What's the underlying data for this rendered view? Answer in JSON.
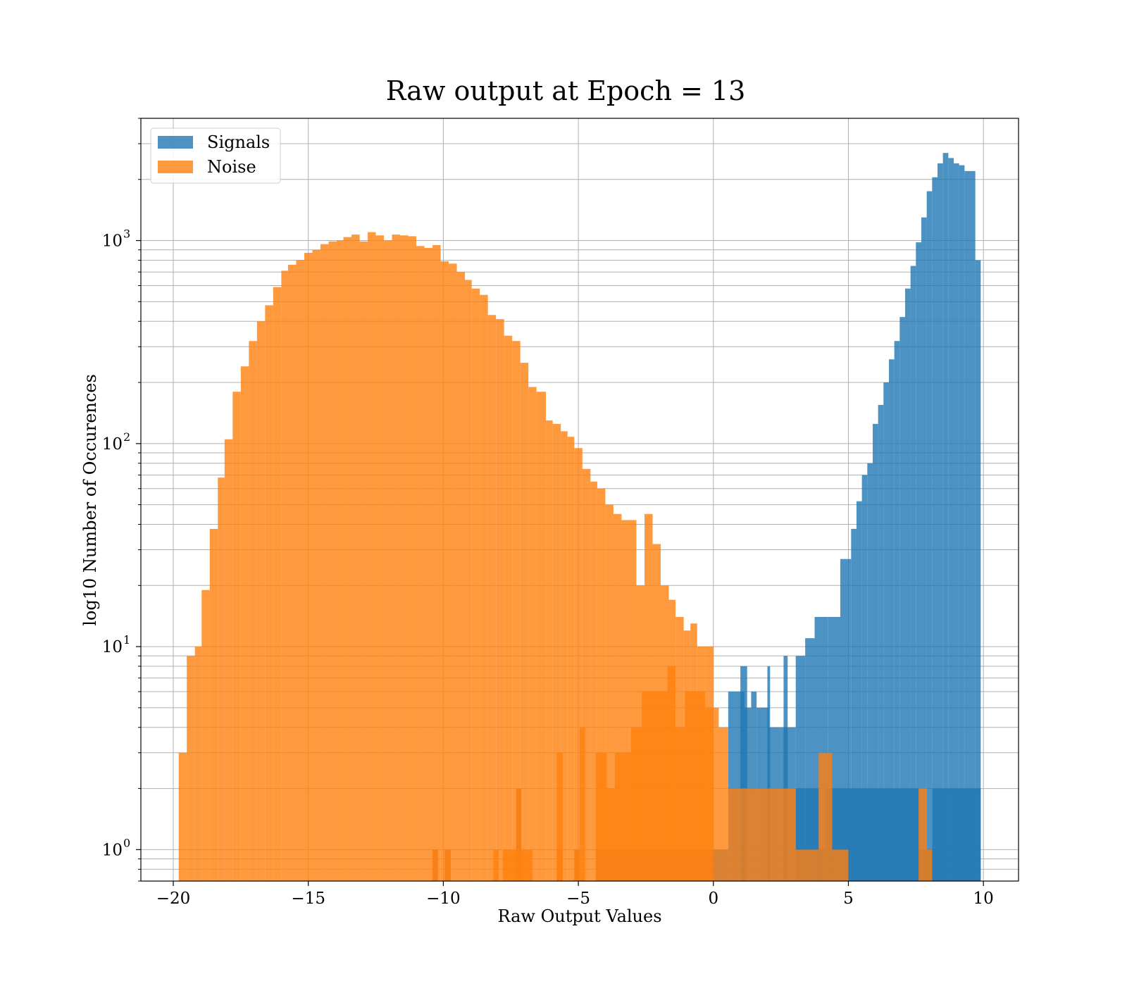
{
  "chart_data": {
    "type": "histogram",
    "title": "Raw output at Epoch = 13",
    "xlabel": "Raw Output Values",
    "ylabel": "log10 Number of Occurences",
    "xlim": [
      -21.2,
      11.3
    ],
    "ylim": [
      0.7,
      4000
    ],
    "yscale": "log",
    "grid": true,
    "legend_position": "top-left",
    "x_ticks": [
      {
        "value": -20,
        "label": "−20"
      },
      {
        "value": -15,
        "label": "−15"
      },
      {
        "value": -10,
        "label": "−10"
      },
      {
        "value": -5,
        "label": "−5"
      },
      {
        "value": 0,
        "label": "0"
      },
      {
        "value": 5,
        "label": "5"
      },
      {
        "value": 10,
        "label": "10"
      }
    ],
    "y_ticks": [
      {
        "value": 1,
        "label": "10",
        "exp": "0"
      },
      {
        "value": 10,
        "label": "10",
        "exp": "1"
      },
      {
        "value": 100,
        "label": "10",
        "exp": "2"
      },
      {
        "value": 1000,
        "label": "10",
        "exp": "3"
      }
    ],
    "series": [
      {
        "name": "Signals",
        "color": "#1f77b4",
        "opacity": 0.8,
        "bins": [
          [
            -10.4,
            -10.2,
            1
          ],
          [
            -9.95,
            -9.73,
            1
          ],
          [
            -7.3,
            -7.12,
            2
          ],
          [
            -5.8,
            -5.58,
            1
          ],
          [
            -5.15,
            -4.95,
            1
          ],
          [
            -4.35,
            -2.6,
            1
          ],
          [
            -2.6,
            -0.6,
            1
          ],
          [
            -0.6,
            0.55,
            1
          ],
          [
            0.55,
            1.15,
            6
          ],
          [
            1.15,
            1.4,
            5
          ],
          [
            1.4,
            1.6,
            6
          ],
          [
            1.6,
            2.05,
            5
          ],
          [
            2.05,
            2.5,
            4
          ],
          [
            2.5,
            3.05,
            4
          ],
          [
            3.05,
            3.4,
            2
          ],
          [
            3.4,
            3.9,
            2
          ],
          [
            3.9,
            4.15,
            1
          ],
          [
            4.15,
            4.4,
            2
          ],
          [
            4.4,
            5.0,
            2
          ],
          [
            5.0,
            7.6,
            2
          ],
          [
            7.6,
            8.1,
            1
          ],
          [
            8.1,
            9.9,
            2
          ],
          [
            1.0,
            1.25,
            8
          ],
          [
            2.0,
            2.1,
            8
          ],
          [
            2.6,
            2.75,
            9
          ],
          [
            3.05,
            3.4,
            9
          ],
          [
            3.4,
            3.75,
            11
          ],
          [
            3.75,
            4.25,
            14
          ],
          [
            4.25,
            4.7,
            14
          ],
          [
            4.7,
            5.1,
            27
          ],
          [
            5.1,
            5.3,
            38
          ],
          [
            5.3,
            5.5,
            52
          ],
          [
            5.5,
            5.7,
            70
          ],
          [
            5.7,
            5.9,
            80
          ],
          [
            5.9,
            6.1,
            125
          ],
          [
            6.1,
            6.3,
            155
          ],
          [
            6.3,
            6.5,
            200
          ],
          [
            6.5,
            6.7,
            260
          ],
          [
            6.7,
            6.9,
            320
          ],
          [
            6.9,
            7.1,
            420
          ],
          [
            7.1,
            7.3,
            580
          ],
          [
            7.3,
            7.5,
            750
          ],
          [
            7.5,
            7.7,
            980
          ],
          [
            7.7,
            7.9,
            1300
          ],
          [
            7.9,
            8.1,
            1750
          ],
          [
            8.1,
            8.3,
            2050
          ],
          [
            8.3,
            8.5,
            2400
          ],
          [
            8.5,
            8.7,
            2700
          ],
          [
            8.7,
            8.9,
            2550
          ],
          [
            8.9,
            9.1,
            2400
          ],
          [
            9.1,
            9.3,
            2350
          ],
          [
            9.3,
            9.5,
            2200
          ],
          [
            9.5,
            9.7,
            2200
          ],
          [
            9.7,
            9.9,
            800
          ]
        ]
      },
      {
        "name": "Noise",
        "color": "#ff7f0e",
        "opacity": 0.8,
        "bins": [
          [
            -19.8,
            -19.5,
            3
          ],
          [
            -19.5,
            -19.2,
            9
          ],
          [
            -19.2,
            -18.95,
            10
          ],
          [
            -18.95,
            -18.65,
            19
          ],
          [
            -18.65,
            -18.35,
            38
          ],
          [
            -18.35,
            -18.1,
            68
          ],
          [
            -18.1,
            -17.8,
            105
          ],
          [
            -17.8,
            -17.5,
            180
          ],
          [
            -17.5,
            -17.2,
            240
          ],
          [
            -17.2,
            -16.9,
            320
          ],
          [
            -16.9,
            -16.6,
            400
          ],
          [
            -16.6,
            -16.3,
            480
          ],
          [
            -16.3,
            -16.0,
            590
          ],
          [
            -16.0,
            -15.75,
            710
          ],
          [
            -15.75,
            -15.45,
            760
          ],
          [
            -15.45,
            -15.15,
            800
          ],
          [
            -15.15,
            -14.85,
            870
          ],
          [
            -14.85,
            -14.55,
            900
          ],
          [
            -14.55,
            -14.25,
            960
          ],
          [
            -14.25,
            -13.95,
            990
          ],
          [
            -13.95,
            -13.7,
            1000
          ],
          [
            -13.7,
            -13.4,
            1040
          ],
          [
            -13.4,
            -13.1,
            1070
          ],
          [
            -13.1,
            -12.8,
            990
          ],
          [
            -12.8,
            -12.5,
            1100
          ],
          [
            -12.5,
            -12.2,
            1060
          ],
          [
            -12.2,
            -11.9,
            1000
          ],
          [
            -11.9,
            -11.6,
            1070
          ],
          [
            -11.6,
            -11.3,
            1060
          ],
          [
            -11.3,
            -11.0,
            1050
          ],
          [
            -11.0,
            -10.7,
            940
          ],
          [
            -10.7,
            -10.4,
            920
          ],
          [
            -10.4,
            -10.1,
            950
          ],
          [
            -10.1,
            -9.8,
            790
          ],
          [
            -9.8,
            -9.5,
            770
          ],
          [
            -9.5,
            -9.2,
            700
          ],
          [
            -9.2,
            -8.95,
            640
          ],
          [
            -8.95,
            -8.65,
            580
          ],
          [
            -8.65,
            -8.35,
            540
          ],
          [
            -8.35,
            -8.05,
            430
          ],
          [
            -8.05,
            -7.75,
            410
          ],
          [
            -7.75,
            -7.45,
            340
          ],
          [
            -7.45,
            -7.15,
            320
          ],
          [
            -7.15,
            -6.85,
            250
          ],
          [
            -6.85,
            -6.55,
            190
          ],
          [
            -6.55,
            -6.2,
            180
          ],
          [
            -6.2,
            -5.95,
            130
          ],
          [
            -5.95,
            -5.65,
            125
          ],
          [
            -5.65,
            -5.4,
            115
          ],
          [
            -5.4,
            -5.15,
            108
          ],
          [
            -5.15,
            -4.85,
            95
          ],
          [
            -4.85,
            -4.55,
            75
          ],
          [
            -4.55,
            -4.3,
            65
          ],
          [
            -4.3,
            -4.0,
            60
          ],
          [
            -4.0,
            -3.7,
            50
          ],
          [
            -3.7,
            -3.4,
            45
          ],
          [
            -3.4,
            -3.1,
            42
          ],
          [
            -3.1,
            -2.85,
            42
          ],
          [
            -2.85,
            -2.55,
            20
          ],
          [
            -2.55,
            -2.25,
            45
          ],
          [
            -2.25,
            -1.95,
            32
          ],
          [
            -1.95,
            -1.65,
            20
          ],
          [
            -1.65,
            -1.4,
            17
          ],
          [
            -1.4,
            -1.1,
            14
          ],
          [
            -1.1,
            -0.85,
            12
          ],
          [
            -0.85,
            -0.6,
            13
          ],
          [
            -0.6,
            -0.3,
            10
          ],
          [
            -0.3,
            0.0,
            10
          ],
          [
            0.0,
            0.2,
            5
          ],
          [
            0.2,
            0.55,
            4
          ],
          [
            0.55,
            1.1,
            2
          ],
          [
            1.1,
            3.05,
            2
          ],
          [
            3.05,
            3.9,
            1
          ],
          [
            3.9,
            4.4,
            3
          ],
          [
            4.4,
            5.0,
            1
          ],
          [
            7.6,
            7.9,
            2
          ],
          [
            7.9,
            8.1,
            1
          ],
          [
            -10.4,
            -10.2,
            1
          ],
          [
            -9.95,
            -9.73,
            1
          ],
          [
            -8.15,
            -7.95,
            1
          ],
          [
            -7.3,
            -7.12,
            2
          ],
          [
            -7.8,
            -6.7,
            1
          ],
          [
            -5.8,
            -5.58,
            3
          ],
          [
            -5.8,
            -5.58,
            1
          ],
          [
            -5.15,
            -4.95,
            1
          ],
          [
            -4.95,
            -4.75,
            4
          ],
          [
            -4.35,
            -3.95,
            3
          ],
          [
            -3.95,
            -3.65,
            2
          ],
          [
            -3.65,
            -3.35,
            3
          ],
          [
            -3.35,
            -3.05,
            3
          ],
          [
            -3.05,
            -2.65,
            4
          ],
          [
            -2.65,
            -1.7,
            6
          ],
          [
            -1.7,
            -1.4,
            8
          ],
          [
            -1.4,
            -1.05,
            4
          ],
          [
            -1.05,
            -0.7,
            6
          ],
          [
            -0.7,
            -0.3,
            6
          ],
          [
            -0.3,
            0.0,
            5
          ]
        ]
      }
    ]
  }
}
